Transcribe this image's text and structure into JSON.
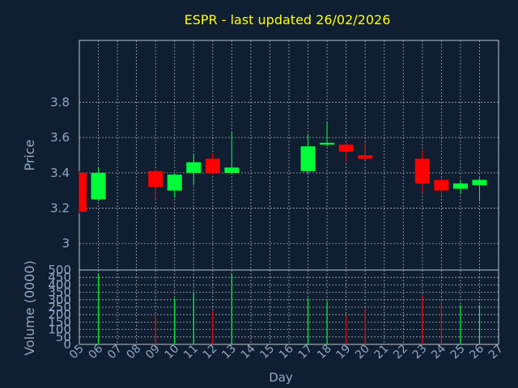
{
  "colors": {
    "background": "#0f1e30",
    "title": "#ffff00",
    "axis_text": "#8fa9c7",
    "frame": "#b9c3d0",
    "grid": "#c8ced6",
    "up": "#00ff3a",
    "down": "#ff0000"
  },
  "chart_data": {
    "type": "candlestick",
    "title": "ESPR - last updated 26/02/2026",
    "xlabel": "Day",
    "price_panel": {
      "ylabel": "Price",
      "ylim": [
        2.85,
        4.15
      ],
      "ticks": [
        3,
        3.2,
        3.4,
        3.6,
        3.8
      ],
      "tick_labels": [
        "3",
        "3.2",
        "3.4",
        "3.6",
        "3.8"
      ],
      "grid": true
    },
    "volume_panel": {
      "ylabel": "Volume (0000)",
      "ylim": [
        0,
        500
      ],
      "ticks": [
        0,
        50,
        100,
        150,
        200,
        250,
        300,
        350,
        400,
        450,
        500
      ],
      "tick_labels": [
        "0",
        "50",
        "100",
        "150",
        "200",
        "250",
        "300",
        "350",
        "400",
        "450",
        "500"
      ],
      "grid": true
    },
    "x_ticks": [
      "05",
      "06",
      "07",
      "08",
      "09",
      "10",
      "11",
      "12",
      "13",
      "14",
      "15",
      "16",
      "17",
      "18",
      "19",
      "20",
      "21",
      "22",
      "23",
      "24",
      "25",
      "26",
      "27"
    ],
    "candles": [
      {
        "day": "05",
        "open": 3.4,
        "high": 3.41,
        "low": 3.17,
        "close": 3.18,
        "volume": 0
      },
      {
        "day": "06",
        "open": 3.25,
        "high": 3.43,
        "low": 3.24,
        "close": 3.4,
        "volume": 470
      },
      {
        "day": "09",
        "open": 3.41,
        "high": 3.42,
        "low": 3.25,
        "close": 3.32,
        "volume": 195
      },
      {
        "day": "10",
        "open": 3.3,
        "high": 3.4,
        "low": 3.26,
        "close": 3.39,
        "volume": 310
      },
      {
        "day": "11",
        "open": 3.4,
        "high": 3.51,
        "low": 3.33,
        "close": 3.46,
        "volume": 350
      },
      {
        "day": "12",
        "open": 3.48,
        "high": 3.51,
        "low": 3.39,
        "close": 3.4,
        "volume": 225
      },
      {
        "day": "13",
        "open": 3.4,
        "high": 3.63,
        "low": 3.39,
        "close": 3.43,
        "volume": 480
      },
      {
        "day": "17",
        "open": 3.41,
        "high": 3.62,
        "low": 3.4,
        "close": 3.55,
        "volume": 310
      },
      {
        "day": "18",
        "open": 3.56,
        "high": 3.69,
        "low": 3.55,
        "close": 3.57,
        "volume": 290
      },
      {
        "day": "19",
        "open": 3.56,
        "high": 3.57,
        "low": 3.46,
        "close": 3.52,
        "volume": 190
      },
      {
        "day": "20",
        "open": 3.5,
        "high": 3.57,
        "low": 3.47,
        "close": 3.48,
        "volume": 245
      },
      {
        "day": "23",
        "open": 3.48,
        "high": 3.53,
        "low": 3.29,
        "close": 3.34,
        "volume": 330
      },
      {
        "day": "24",
        "open": 3.36,
        "high": 3.37,
        "low": 3.27,
        "close": 3.3,
        "volume": 280
      },
      {
        "day": "25",
        "open": 3.31,
        "high": 3.36,
        "low": 3.28,
        "close": 3.34,
        "volume": 265
      },
      {
        "day": "26",
        "open": 3.33,
        "high": 3.37,
        "low": 3.24,
        "close": 3.36,
        "volume": 265
      }
    ]
  }
}
